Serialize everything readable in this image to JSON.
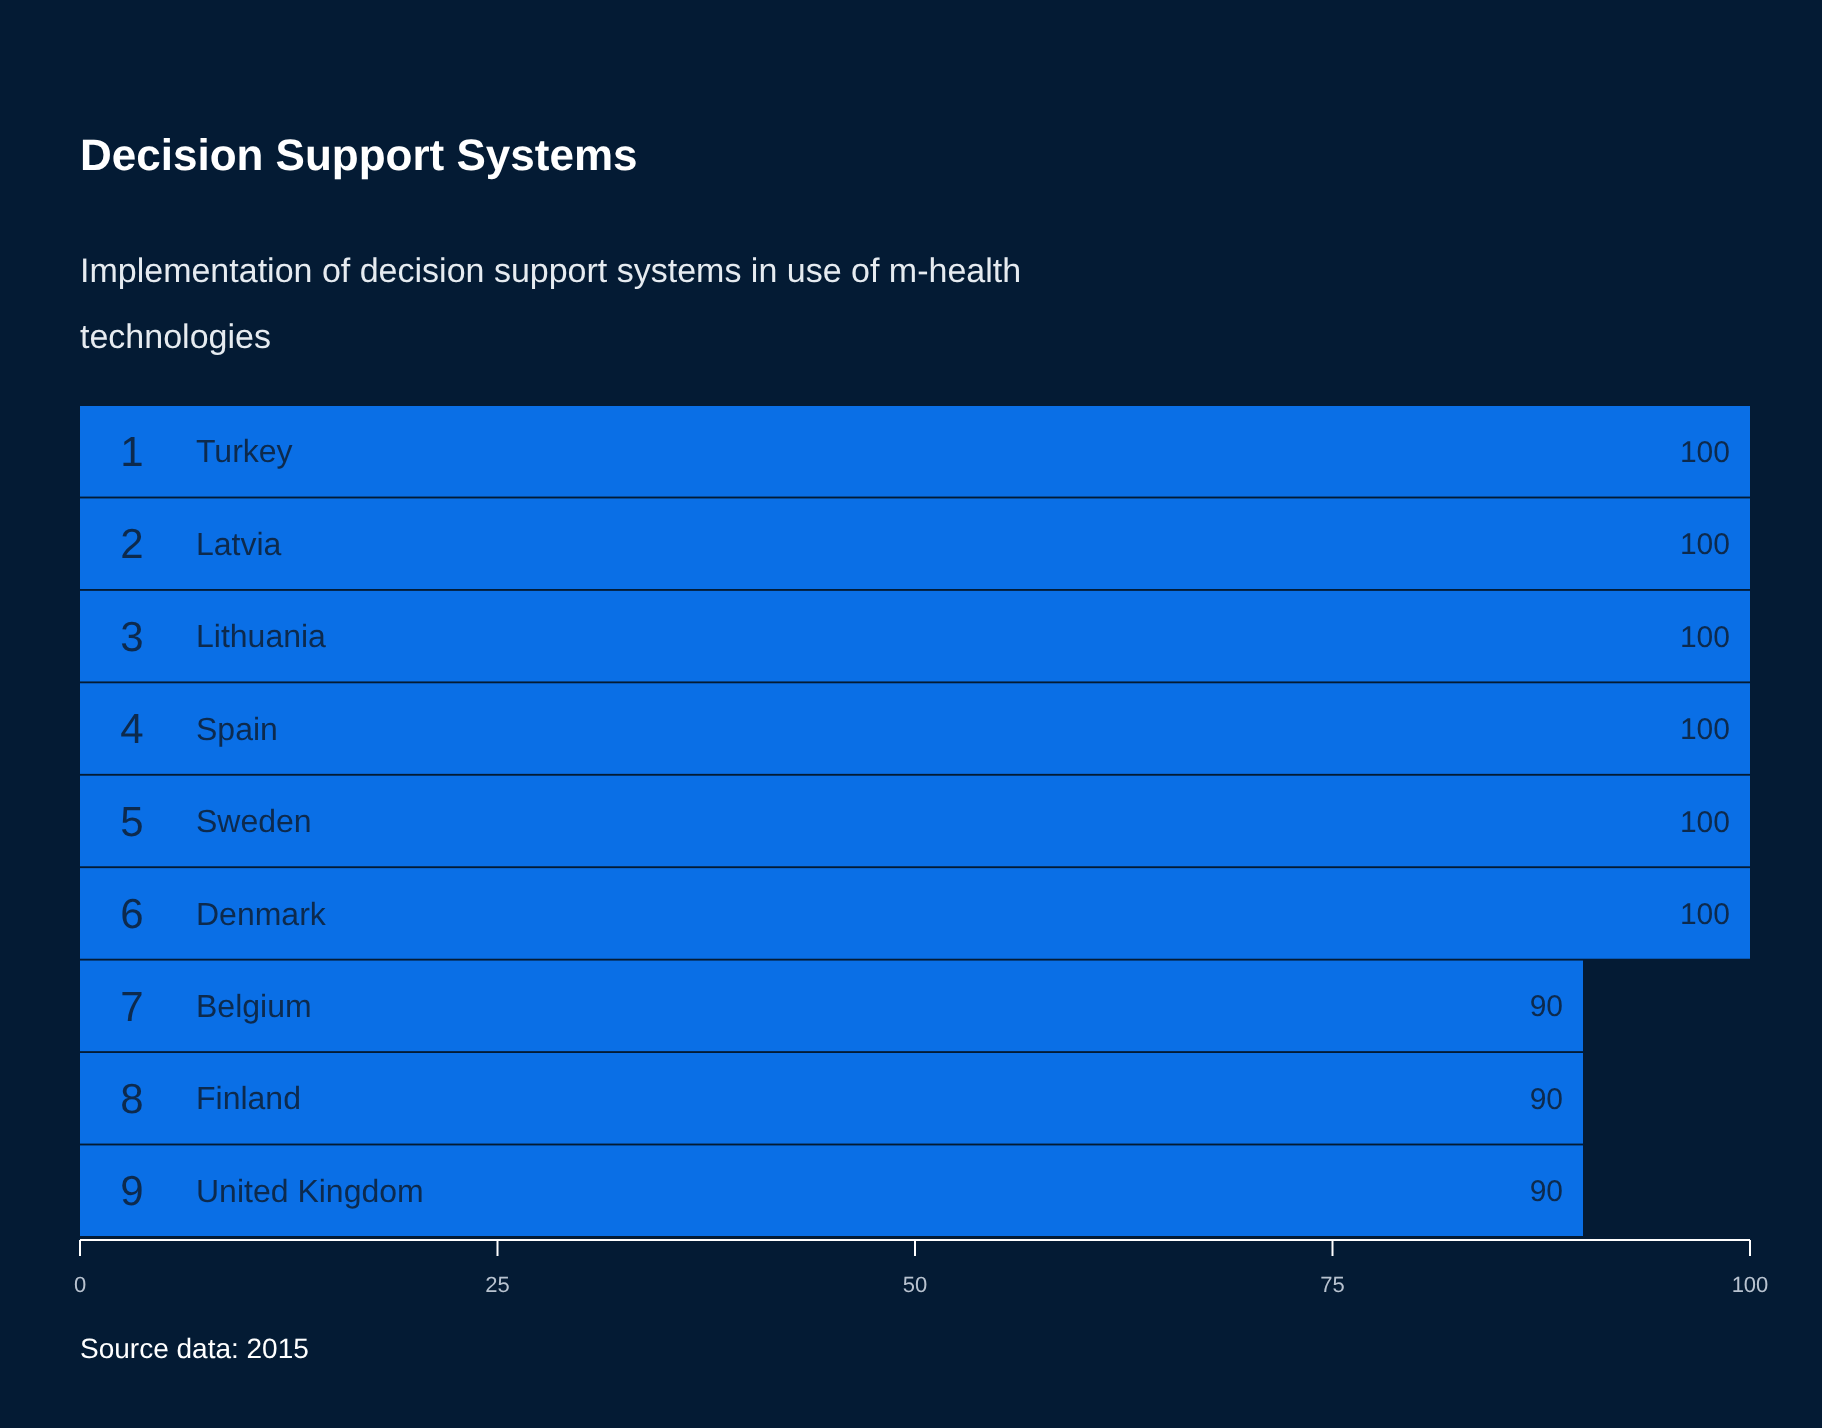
{
  "chart_data": {
    "type": "bar",
    "orientation": "horizontal",
    "title": "Decision Support Systems",
    "subtitle": "Implementation of decision support systems in use of m-health technologies",
    "categories": [
      "Turkey",
      "Latvia",
      "Lithuania",
      "Spain",
      "Sweden",
      "Denmark",
      "Belgium",
      "Finland",
      "United Kingdom"
    ],
    "values": [
      100,
      100,
      100,
      100,
      100,
      100,
      90,
      90,
      90
    ],
    "color": "#0a6fe6",
    "xlim": [
      0,
      100
    ],
    "xticks": [
      0,
      25,
      50,
      75,
      100
    ],
    "grid": false,
    "data_labels": true,
    "annotations": [
      {
        "text": "1",
        "y": "Turkey"
      },
      {
        "text": "2",
        "y": "Latvia"
      },
      {
        "text": "3",
        "y": "Lithuania"
      },
      {
        "text": "4",
        "y": "Spain"
      },
      {
        "text": "5",
        "y": "Sweden"
      },
      {
        "text": "6",
        "y": "Denmark"
      },
      {
        "text": "7",
        "y": "Belgium"
      },
      {
        "text": "8",
        "y": "Finland"
      },
      {
        "text": "9",
        "y": "United Kingdom"
      },
      "Source data: 2015"
    ]
  }
}
